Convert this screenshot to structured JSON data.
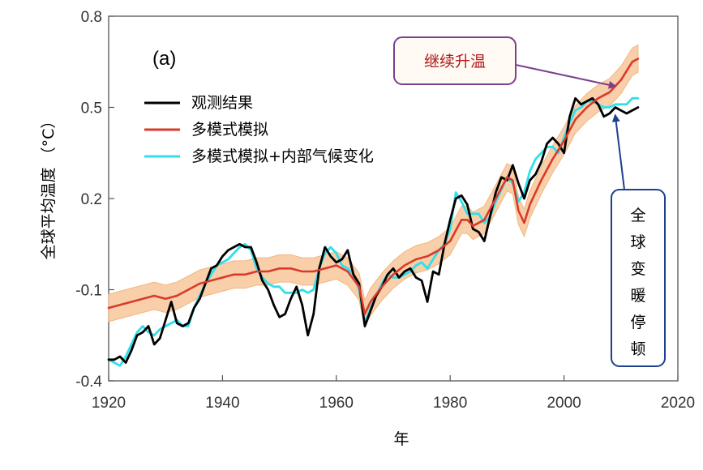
{
  "chart_data": {
    "type": "line",
    "panel_label": "(a)",
    "xlabel": "年",
    "ylabel": "全球平均温度 （°C）",
    "xlim": [
      1920,
      2020
    ],
    "ylim": [
      -0.4,
      0.8
    ],
    "x_ticks": [
      "1920",
      "1940",
      "1960",
      "1980",
      "2000",
      "2020"
    ],
    "y_ticks": [
      "-0.4",
      "-0.1",
      "0.2",
      "0.5",
      "0.8"
    ],
    "legend_position": "upper-left",
    "colors": {
      "observed": "#000000",
      "multi_model": "#d93a2b",
      "multi_model_internal": "#2ee0ec",
      "uncertainty_band": "#f7c79a",
      "callout_warming_border": "#7b3f8c",
      "callout_warming_text": "#b31b1b",
      "callout_hiatus_border": "#1f3f8f",
      "callout_hiatus_text": "#000000"
    },
    "band_halfwidth": 0.045,
    "series": [
      {
        "name": "观测结果",
        "key": "observed",
        "x": [
          1920,
          1921,
          1922,
          1923,
          1924,
          1925,
          1926,
          1927,
          1928,
          1929,
          1930,
          1931,
          1932,
          1933,
          1934,
          1935,
          1936,
          1937,
          1938,
          1939,
          1940,
          1941,
          1942,
          1943,
          1944,
          1945,
          1946,
          1947,
          1948,
          1949,
          1950,
          1951,
          1952,
          1953,
          1954,
          1955,
          1956,
          1957,
          1958,
          1959,
          1960,
          1961,
          1962,
          1963,
          1964,
          1965,
          1966,
          1967,
          1968,
          1969,
          1970,
          1971,
          1972,
          1973,
          1974,
          1975,
          1976,
          1977,
          1978,
          1979,
          1980,
          1981,
          1982,
          1983,
          1984,
          1985,
          1986,
          1987,
          1988,
          1989,
          1990,
          1991,
          1992,
          1993,
          1994,
          1995,
          1996,
          1997,
          1998,
          1999,
          2000,
          2001,
          2002,
          2003,
          2004,
          2005,
          2006,
          2007,
          2008,
          2009,
          2010,
          2011,
          2012,
          2013
        ],
        "values": [
          -0.33,
          -0.33,
          -0.32,
          -0.34,
          -0.3,
          -0.25,
          -0.24,
          -0.22,
          -0.28,
          -0.26,
          -0.2,
          -0.14,
          -0.21,
          -0.22,
          -0.21,
          -0.16,
          -0.13,
          -0.08,
          -0.03,
          -0.02,
          0.01,
          0.03,
          0.04,
          0.05,
          0.04,
          0.04,
          -0.01,
          -0.07,
          -0.1,
          -0.15,
          -0.19,
          -0.18,
          -0.13,
          -0.09,
          -0.15,
          -0.25,
          -0.18,
          -0.03,
          0.04,
          0.01,
          -0.01,
          0.0,
          0.03,
          -0.05,
          -0.08,
          -0.22,
          -0.17,
          -0.12,
          -0.09,
          -0.05,
          -0.03,
          -0.06,
          -0.04,
          -0.03,
          -0.06,
          -0.07,
          -0.14,
          -0.04,
          -0.05,
          0.05,
          0.13,
          0.2,
          0.21,
          0.18,
          0.1,
          0.09,
          0.06,
          0.14,
          0.22,
          0.27,
          0.26,
          0.31,
          0.25,
          0.2,
          0.26,
          0.28,
          0.32,
          0.38,
          0.4,
          0.38,
          0.35,
          0.47,
          0.53,
          0.51,
          0.52,
          0.53,
          0.51,
          0.47,
          0.48,
          0.5,
          0.49,
          0.48,
          0.49,
          0.5
        ]
      },
      {
        "name": "多模式模拟",
        "key": "multi_model",
        "x": [
          1920,
          1922,
          1924,
          1926,
          1928,
          1930,
          1932,
          1934,
          1936,
          1938,
          1940,
          1942,
          1944,
          1946,
          1948,
          1950,
          1952,
          1954,
          1956,
          1958,
          1960,
          1962,
          1964,
          1965,
          1966,
          1968,
          1970,
          1972,
          1974,
          1976,
          1978,
          1980,
          1982,
          1983,
          1984,
          1986,
          1988,
          1990,
          1991,
          1992,
          1993,
          1994,
          1996,
          1998,
          2000,
          2002,
          2004,
          2006,
          2008,
          2010,
          2012,
          2013
        ],
        "values": [
          -0.16,
          -0.15,
          -0.14,
          -0.13,
          -0.12,
          -0.13,
          -0.12,
          -0.1,
          -0.08,
          -0.07,
          -0.06,
          -0.05,
          -0.05,
          -0.04,
          -0.04,
          -0.03,
          -0.03,
          -0.04,
          -0.04,
          -0.03,
          -0.02,
          -0.04,
          -0.09,
          -0.18,
          -0.14,
          -0.09,
          -0.05,
          -0.02,
          0.0,
          0.01,
          0.03,
          0.06,
          0.13,
          0.13,
          0.11,
          0.13,
          0.2,
          0.27,
          0.26,
          0.16,
          0.12,
          0.18,
          0.26,
          0.33,
          0.39,
          0.46,
          0.5,
          0.53,
          0.55,
          0.59,
          0.65,
          0.66
        ]
      },
      {
        "name": "多模式模拟+内部气候变化",
        "key": "multi_model_internal",
        "x": [
          1920,
          1921,
          1922,
          1923,
          1924,
          1925,
          1926,
          1927,
          1928,
          1929,
          1930,
          1931,
          1932,
          1933,
          1934,
          1935,
          1936,
          1937,
          1938,
          1939,
          1940,
          1941,
          1942,
          1943,
          1944,
          1945,
          1946,
          1947,
          1948,
          1949,
          1950,
          1951,
          1952,
          1953,
          1954,
          1955,
          1956,
          1957,
          1958,
          1959,
          1960,
          1961,
          1962,
          1963,
          1964,
          1965,
          1966,
          1967,
          1968,
          1969,
          1970,
          1971,
          1972,
          1973,
          1974,
          1975,
          1976,
          1977,
          1978,
          1979,
          1980,
          1981,
          1982,
          1983,
          1984,
          1985,
          1986,
          1987,
          1988,
          1989,
          1990,
          1991,
          1992,
          1993,
          1994,
          1995,
          1996,
          1997,
          1998,
          1999,
          2000,
          2001,
          2002,
          2003,
          2004,
          2005,
          2006,
          2007,
          2008,
          2009,
          2010,
          2011,
          2012,
          2013
        ],
        "values": [
          -0.33,
          -0.34,
          -0.35,
          -0.32,
          -0.28,
          -0.24,
          -0.22,
          -0.24,
          -0.25,
          -0.23,
          -0.22,
          -0.21,
          -0.2,
          -0.22,
          -0.22,
          -0.16,
          -0.12,
          -0.08,
          -0.05,
          -0.02,
          -0.01,
          0.0,
          0.02,
          0.04,
          0.05,
          0.03,
          -0.03,
          -0.06,
          -0.08,
          -0.09,
          -0.09,
          -0.11,
          -0.11,
          -0.11,
          -0.1,
          -0.11,
          -0.1,
          -0.03,
          0.02,
          0.04,
          0.02,
          -0.02,
          -0.03,
          -0.05,
          -0.1,
          -0.21,
          -0.16,
          -0.12,
          -0.08,
          -0.05,
          -0.06,
          -0.06,
          -0.05,
          -0.04,
          -0.02,
          -0.01,
          -0.03,
          0.0,
          0.03,
          0.05,
          0.1,
          0.22,
          0.19,
          0.15,
          0.15,
          0.15,
          0.12,
          0.14,
          0.19,
          0.23,
          0.27,
          0.25,
          0.19,
          0.22,
          0.29,
          0.33,
          0.35,
          0.37,
          0.37,
          0.35,
          0.4,
          0.45,
          0.49,
          0.5,
          0.52,
          0.52,
          0.51,
          0.5,
          0.5,
          0.51,
          0.51,
          0.51,
          0.53,
          0.53
        ]
      }
    ]
  },
  "annotations": {
    "warming": {
      "text": "继续升温",
      "target_year": 2009,
      "target_value": 0.58
    },
    "hiatus": {
      "text": "全球变暖停顿",
      "target_year": 2009,
      "target_value": 0.49
    }
  }
}
